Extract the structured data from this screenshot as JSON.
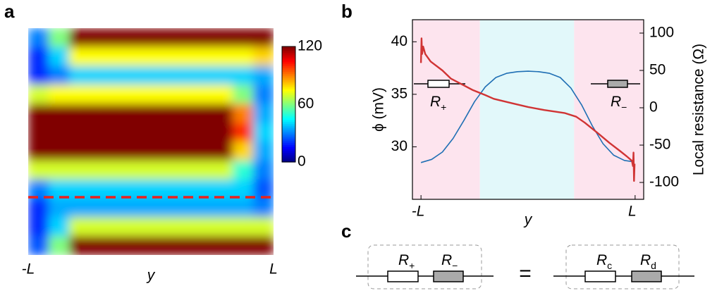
{
  "chart_data": [
    {
      "type": "heatmap",
      "panel": "a",
      "colormap": "jet",
      "zlim": [
        0,
        120
      ],
      "zticks": [
        0,
        60,
        120
      ],
      "xlim": [
        -1,
        1
      ],
      "xticks": [
        {
          "value": -1,
          "label": "-L"
        },
        {
          "value": 1,
          "label": "L"
        }
      ],
      "xlabel": "y",
      "z": [
        [
          30,
          60,
          120,
          120,
          120,
          120,
          120,
          120,
          120,
          120,
          120,
          120
        ],
        [
          20,
          40,
          75,
          75,
          75,
          75,
          75,
          75,
          75,
          75,
          75,
          80
        ],
        [
          20,
          30,
          40,
          40,
          40,
          40,
          40,
          40,
          40,
          40,
          40,
          35
        ],
        [
          70,
          75,
          75,
          75,
          75,
          75,
          75,
          75,
          75,
          75,
          60,
          30
        ],
        [
          120,
          120,
          120,
          120,
          120,
          120,
          120,
          120,
          120,
          120,
          90,
          35
        ],
        [
          120,
          120,
          120,
          120,
          120,
          120,
          120,
          120,
          120,
          120,
          100,
          40
        ],
        [
          120,
          120,
          120,
          120,
          120,
          120,
          120,
          120,
          120,
          120,
          80,
          35
        ],
        [
          70,
          70,
          70,
          70,
          70,
          70,
          70,
          70,
          70,
          70,
          50,
          30
        ],
        [
          30,
          40,
          40,
          40,
          40,
          40,
          40,
          40,
          40,
          40,
          40,
          25
        ],
        [
          20,
          35,
          35,
          35,
          35,
          35,
          35,
          35,
          35,
          35,
          35,
          30
        ],
        [
          20,
          40,
          70,
          70,
          70,
          70,
          70,
          70,
          70,
          70,
          70,
          70
        ],
        [
          25,
          60,
          120,
          120,
          120,
          120,
          120,
          120,
          120,
          120,
          120,
          120
        ]
      ]
    },
    {
      "type": "line",
      "panel": "b",
      "xlim": [
        -1.08,
        1.08
      ],
      "xticks": [
        {
          "value": -1,
          "label": "-L"
        },
        {
          "value": 1,
          "label": "L"
        }
      ],
      "xlabel": "y",
      "ylim": [
        25,
        42.1
      ],
      "yticks": [
        30,
        35,
        40
      ],
      "ylabel": "ϕ (mV)",
      "y2lim": [
        -122.6,
        117.9
      ],
      "y2ticks": [
        -100,
        -50,
        0,
        50,
        100
      ],
      "y2label": "Local resistance (Ω)",
      "regions": [
        {
          "from": -1.08,
          "to": -0.45,
          "color": "#fde4ee"
        },
        {
          "from": -0.45,
          "to": 0.43,
          "color": "#e2f8fa"
        },
        {
          "from": 0.43,
          "to": 1.08,
          "color": "#fde4ee"
        }
      ],
      "series": [
        {
          "color": "#1f6fb4",
          "x": [
            -1,
            -0.9,
            -0.8,
            -0.7,
            -0.6,
            -0.5,
            -0.4,
            -0.3,
            -0.2,
            -0.1,
            0,
            0.1,
            0.2,
            0.3,
            0.4,
            0.5,
            0.6,
            0.7,
            0.8,
            0.9,
            0.97
          ],
          "values": [
            28.5,
            28.8,
            29.5,
            30.8,
            32.5,
            34.3,
            35.7,
            36.6,
            37.0,
            37.15,
            37.2,
            37.15,
            37.0,
            36.6,
            35.6,
            34.0,
            32.0,
            30.3,
            29.2,
            28.7,
            28.6
          ]
        },
        {
          "color": "#d03434",
          "axis": "y2",
          "x": [
            -1,
            -0.995,
            -0.99,
            -0.98,
            -0.96,
            -0.91,
            -0.8,
            -0.72,
            -0.6,
            -0.52,
            -0.4,
            -0.32,
            -0.15,
            0,
            0.15,
            0.34,
            0.45,
            0.53,
            0.66,
            0.76,
            0.86,
            0.93,
            0.97,
            0.98,
            0.985,
            0.99,
            0.995
          ],
          "values": [
            60,
            93,
            72,
            82,
            72,
            62,
            50,
            39,
            30,
            24,
            17,
            12,
            6,
            1,
            -3,
            -7,
            -12,
            -20,
            -35,
            -47,
            -58,
            -66,
            -71,
            -78,
            -60,
            -98,
            -75
          ]
        }
      ],
      "annotations": [
        {
          "symbol": "R",
          "sub": "+"
        },
        {
          "symbol": "R",
          "sub": "−"
        }
      ]
    }
  ],
  "diagram": {
    "panel": "c",
    "left": [
      {
        "symbol": "R",
        "sub": "+"
      },
      {
        "symbol": "R",
        "sub": "−"
      }
    ],
    "equals": "=",
    "right": [
      {
        "symbol": "R",
        "sub": "c"
      },
      {
        "symbol": "R",
        "sub": "d"
      }
    ]
  }
}
